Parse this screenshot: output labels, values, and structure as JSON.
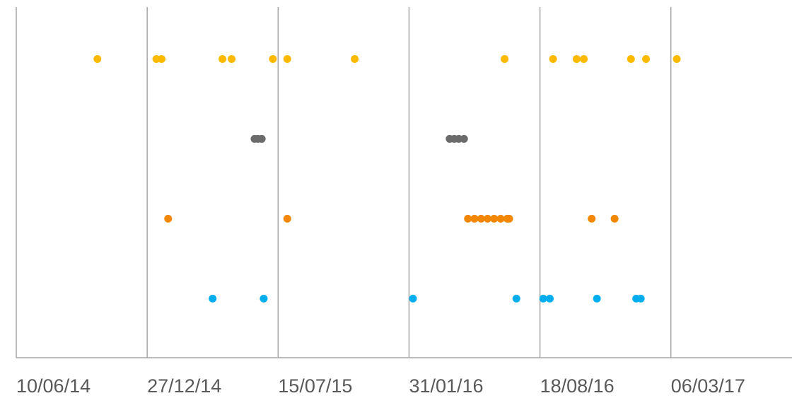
{
  "chart_data": {
    "type": "scatter",
    "xlim": [
      "2014-06-10",
      "2017-09-07"
    ],
    "xticks": [
      {
        "value": "2014-06-10",
        "label": "10/06/14"
      },
      {
        "value": "2014-12-27",
        "label": "27/12/14"
      },
      {
        "value": "2015-07-15",
        "label": "15/07/15"
      },
      {
        "value": "2016-01-31",
        "label": "31/01/16"
      },
      {
        "value": "2016-08-18",
        "label": "18/08/16"
      },
      {
        "value": "2017-03-06",
        "label": "06/03/17"
      }
    ],
    "ylim": [
      0.26,
      4.65
    ],
    "grid": true,
    "series": [
      {
        "color": "#fbb900",
        "x": [
          "2014-10-12",
          "2015-01-10",
          "2015-01-18",
          "2015-04-21",
          "2015-05-05",
          "2015-07-07",
          "2015-07-29",
          "2015-11-09",
          "2016-06-25",
          "2016-09-07",
          "2016-10-13",
          "2016-10-24",
          "2017-01-04",
          "2017-01-27",
          "2017-03-15"
        ],
        "values": [
          4,
          4,
          4,
          4,
          4,
          4,
          4,
          4,
          4,
          4,
          4,
          4,
          4,
          4,
          4
        ]
      },
      {
        "color": "#6b6b6b",
        "x": [
          "2015-06-09",
          "2015-06-14",
          "2015-06-20",
          "2016-04-02",
          "2016-04-09",
          "2016-04-16",
          "2016-04-24"
        ],
        "values": [
          3,
          3,
          3,
          3,
          3,
          3,
          3
        ]
      },
      {
        "color": "#f28705",
        "x": [
          "2015-01-28",
          "2015-07-29",
          "2016-04-30",
          "2016-05-10",
          "2016-05-20",
          "2016-05-30",
          "2016-06-09",
          "2016-06-19",
          "2016-06-29",
          "2016-07-02",
          "2016-11-05",
          "2016-12-10"
        ],
        "values": [
          2,
          2,
          2,
          2,
          2,
          2,
          2,
          2,
          2,
          2,
          2,
          2
        ]
      },
      {
        "color": "#00aeef",
        "x": [
          "2015-04-06",
          "2015-06-23",
          "2016-02-06",
          "2016-07-13",
          "2016-08-23",
          "2016-09-02",
          "2016-11-13",
          "2017-01-12",
          "2017-01-19"
        ],
        "values": [
          1,
          1,
          1,
          1,
          1,
          1,
          1,
          1,
          1
        ]
      }
    ]
  }
}
